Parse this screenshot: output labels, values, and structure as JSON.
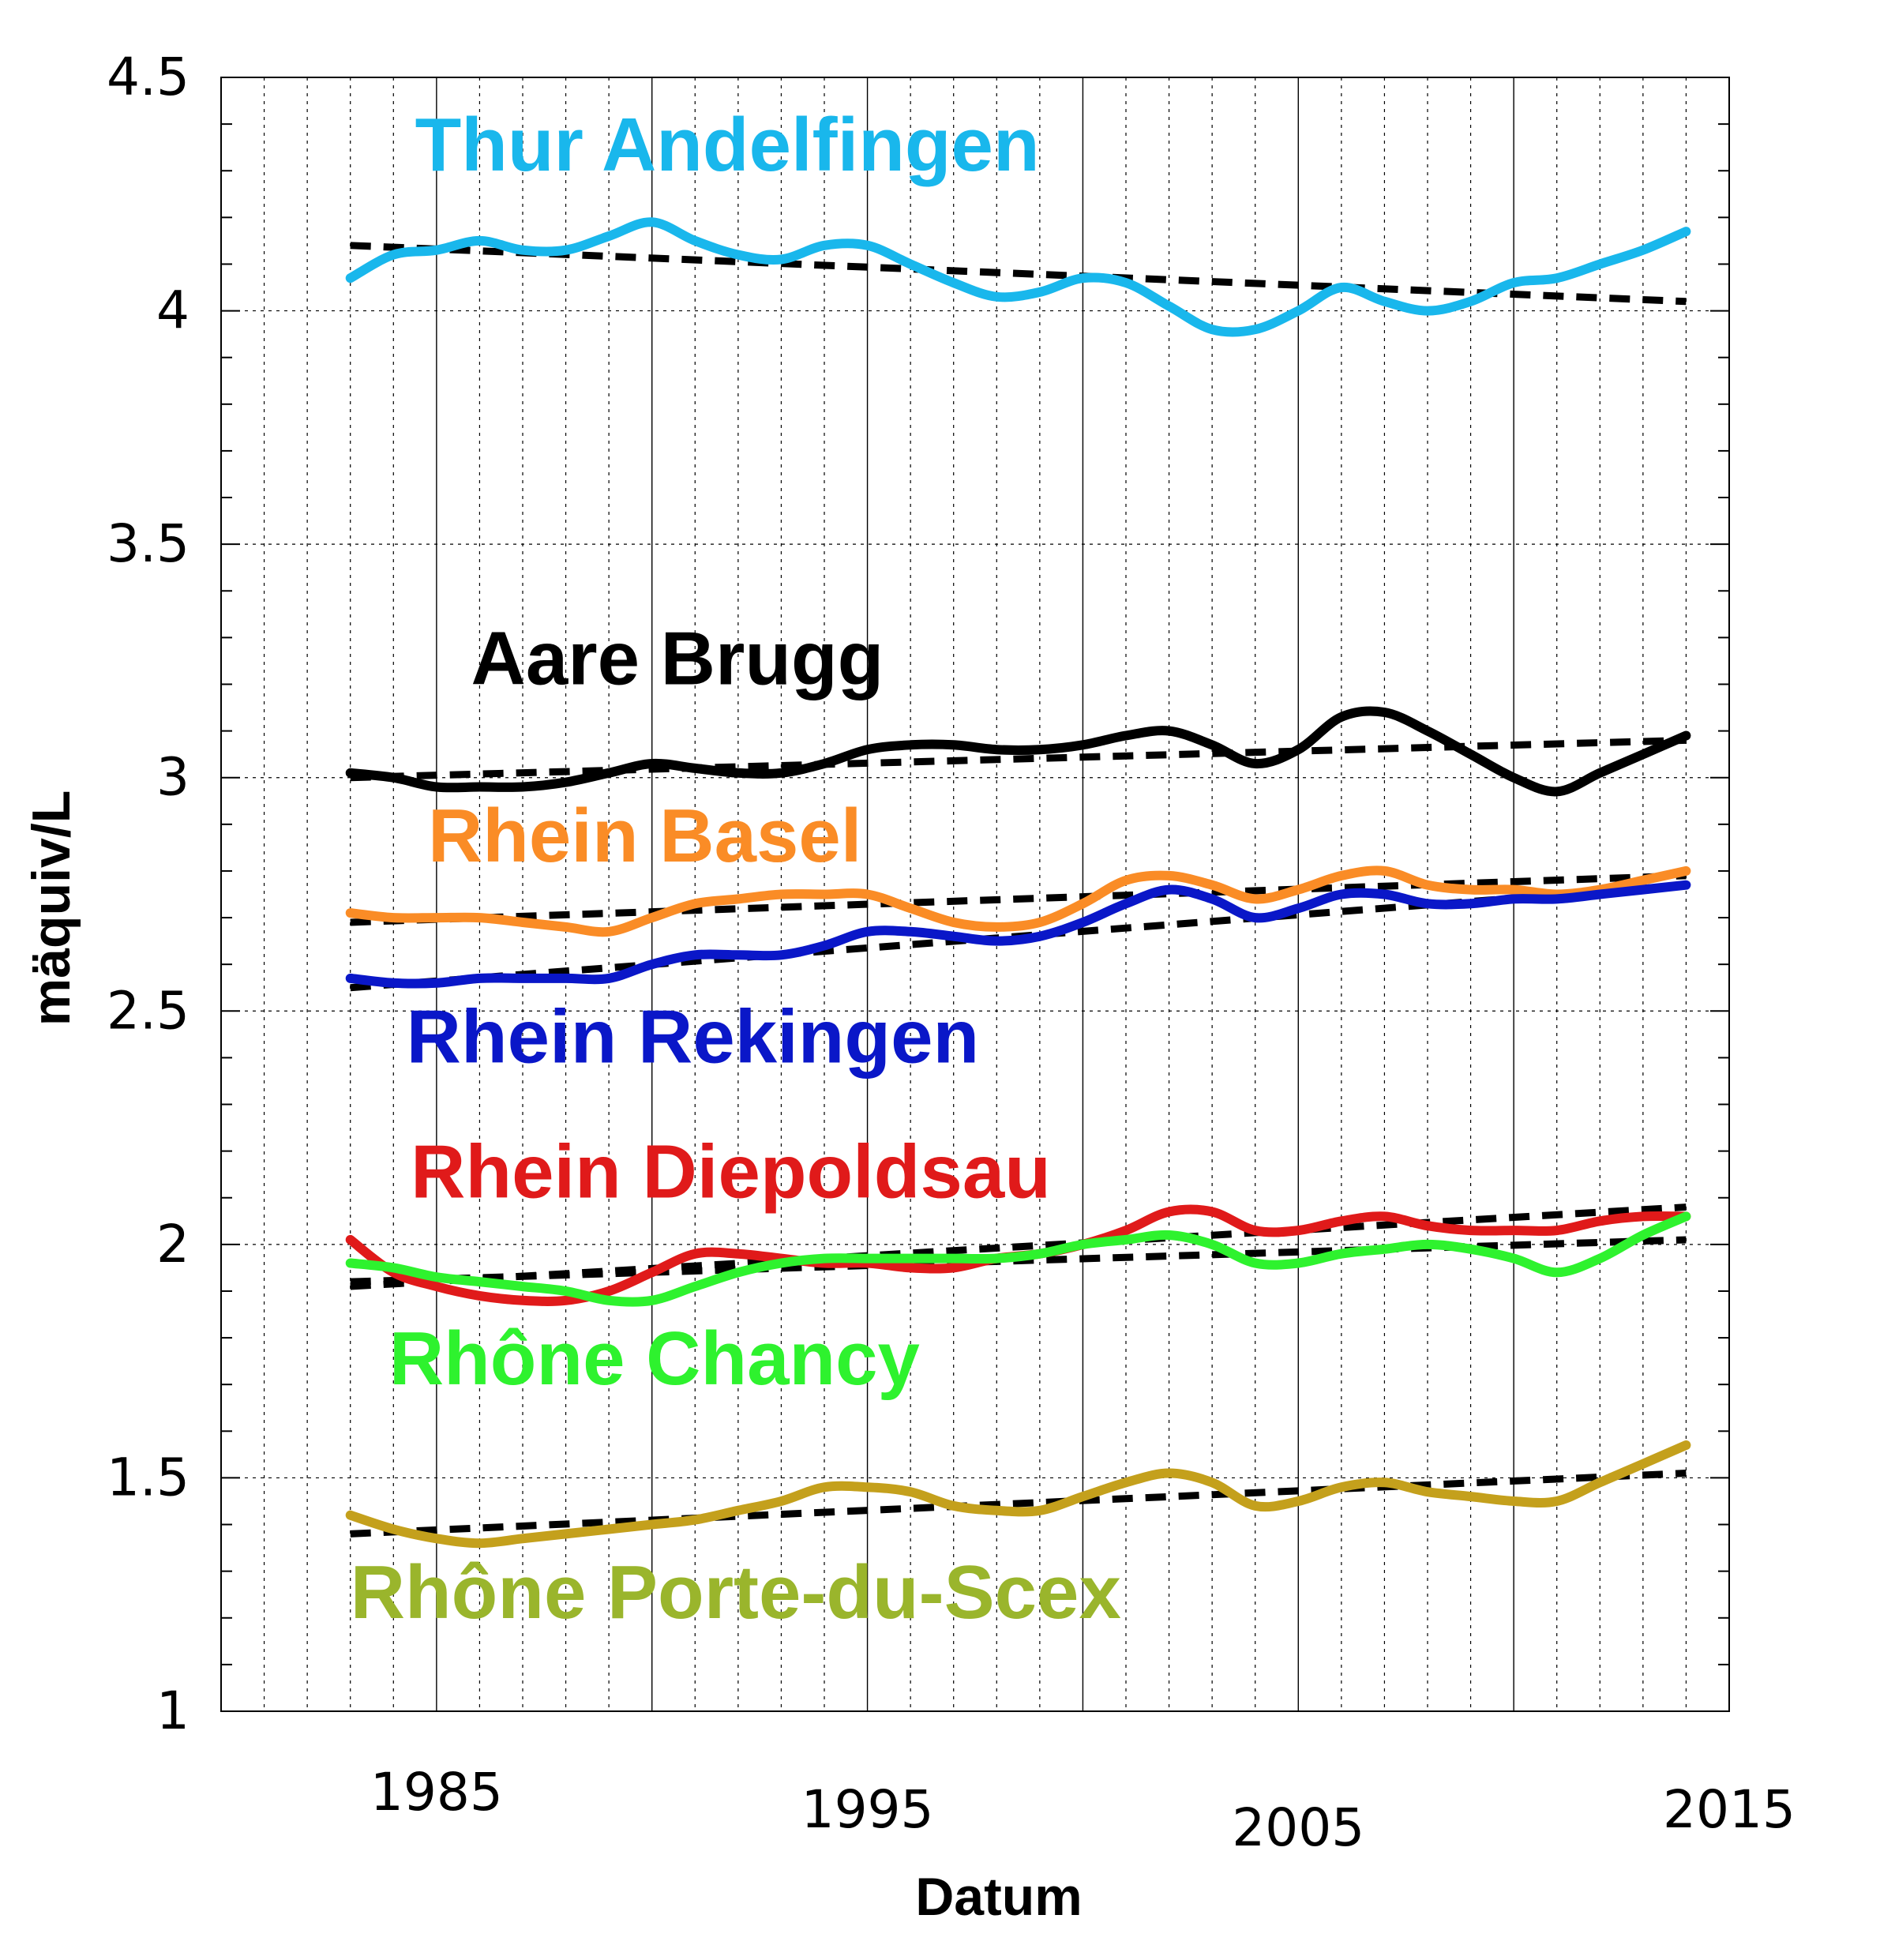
{
  "chart_data": {
    "type": "line",
    "xlabel": "Datum",
    "ylabel": "mäquiv/L",
    "xlim": [
      1980,
      2015
    ],
    "ylim": [
      1,
      4.5
    ],
    "x_ticks": [
      1985,
      1995,
      2005,
      2015
    ],
    "x_tick_labels": [
      "1985",
      "1995",
      "2005",
      "2015"
    ],
    "y_ticks": [
      1,
      1.5,
      2,
      2.5,
      3,
      3.5,
      4,
      4.5
    ],
    "y_tick_labels": [
      "1",
      "1.5",
      "2",
      "2.5",
      "3",
      "3.5",
      "4",
      "4.5"
    ],
    "grid": true,
    "legend": "inline labels",
    "series": [
      {
        "name": "Thur Andelfingen",
        "color": "#19B7EC",
        "x": [
          1983,
          1984,
          1985,
          1986,
          1987,
          1988,
          1989,
          1990,
          1991,
          1992,
          1993,
          1994,
          1995,
          1996,
          1997,
          1998,
          1999,
          2000,
          2001,
          2002,
          2003,
          2004,
          2005,
          2006,
          2007,
          2008,
          2009,
          2010,
          2011,
          2012,
          2013,
          2014
        ],
        "y": [
          4.07,
          4.12,
          4.13,
          4.15,
          4.13,
          4.13,
          4.16,
          4.19,
          4.15,
          4.12,
          4.11,
          4.14,
          4.14,
          4.1,
          4.06,
          4.03,
          4.04,
          4.07,
          4.06,
          4.01,
          3.96,
          3.96,
          4.0,
          4.05,
          4.02,
          4.0,
          4.02,
          4.06,
          4.07,
          4.1,
          4.13,
          4.17
        ],
        "trend": [
          [
            1983,
            4.14
          ],
          [
            2014,
            4.02
          ]
        ]
      },
      {
        "name": "Aare Brugg",
        "color": "#000000",
        "x": [
          1983,
          1984,
          1985,
          1986,
          1987,
          1988,
          1989,
          1990,
          1991,
          1992,
          1993,
          1994,
          1995,
          1996,
          1997,
          1998,
          1999,
          2000,
          2001,
          2002,
          2003,
          2004,
          2005,
          2006,
          2007,
          2008,
          2009,
          2010,
          2011,
          2012,
          2013,
          2014
        ],
        "y": [
          3.01,
          3.0,
          2.98,
          2.98,
          2.98,
          2.99,
          3.01,
          3.03,
          3.02,
          3.01,
          3.01,
          3.03,
          3.06,
          3.07,
          3.07,
          3.06,
          3.06,
          3.07,
          3.09,
          3.1,
          3.07,
          3.03,
          3.06,
          3.13,
          3.14,
          3.1,
          3.05,
          3.0,
          2.97,
          3.01,
          3.05,
          3.09
        ],
        "trend": [
          [
            1983,
            3.0
          ],
          [
            2014,
            3.08
          ]
        ]
      },
      {
        "name": "Rhein Basel",
        "color": "#FA8C26",
        "x": [
          1983,
          1984,
          1985,
          1986,
          1987,
          1988,
          1989,
          1990,
          1991,
          1992,
          1993,
          1994,
          1995,
          1996,
          1997,
          1998,
          1999,
          2000,
          2001,
          2002,
          2003,
          2004,
          2005,
          2006,
          2007,
          2008,
          2009,
          2010,
          2011,
          2012,
          2013,
          2014
        ],
        "y": [
          2.71,
          2.7,
          2.7,
          2.7,
          2.69,
          2.68,
          2.67,
          2.7,
          2.73,
          2.74,
          2.75,
          2.75,
          2.75,
          2.72,
          2.69,
          2.68,
          2.69,
          2.73,
          2.78,
          2.79,
          2.77,
          2.74,
          2.76,
          2.79,
          2.8,
          2.77,
          2.76,
          2.76,
          2.75,
          2.76,
          2.78,
          2.8
        ],
        "trend": [
          [
            1983,
            2.69
          ],
          [
            2014,
            2.79
          ]
        ]
      },
      {
        "name": "Rhein Rekingen",
        "color": "#0A17C8",
        "x": [
          1983,
          1984,
          1985,
          1986,
          1987,
          1988,
          1989,
          1990,
          1991,
          1992,
          1993,
          1994,
          1995,
          1996,
          1997,
          1998,
          1999,
          2000,
          2001,
          2002,
          2003,
          2004,
          2005,
          2006,
          2007,
          2008,
          2009,
          2010,
          2011,
          2012,
          2013,
          2014
        ],
        "y": [
          2.57,
          2.56,
          2.56,
          2.57,
          2.57,
          2.57,
          2.57,
          2.6,
          2.62,
          2.62,
          2.62,
          2.64,
          2.67,
          2.67,
          2.66,
          2.65,
          2.66,
          2.69,
          2.73,
          2.76,
          2.74,
          2.7,
          2.72,
          2.75,
          2.75,
          2.73,
          2.73,
          2.74,
          2.74,
          2.75,
          2.76,
          2.77
        ],
        "trend": [
          [
            1983,
            2.55
          ],
          [
            2014,
            2.77
          ]
        ]
      },
      {
        "name": "Rhein Diepoldsau",
        "color": "#E01A1A",
        "x": [
          1983,
          1984,
          1985,
          1986,
          1987,
          1988,
          1989,
          1990,
          1991,
          1992,
          1993,
          1994,
          1995,
          1996,
          1997,
          1998,
          1999,
          2000,
          2001,
          2002,
          2003,
          2004,
          2005,
          2006,
          2007,
          2008,
          2009,
          2010,
          2011,
          2012,
          2013,
          2014
        ],
        "y": [
          2.01,
          1.94,
          1.91,
          1.89,
          1.88,
          1.88,
          1.9,
          1.94,
          1.98,
          1.98,
          1.97,
          1.96,
          1.96,
          1.95,
          1.95,
          1.97,
          1.98,
          2.0,
          2.03,
          2.07,
          2.07,
          2.03,
          2.03,
          2.05,
          2.06,
          2.04,
          2.03,
          2.03,
          2.03,
          2.05,
          2.06,
          2.06
        ],
        "trend": [
          [
            1983,
            1.91
          ],
          [
            2014,
            2.08
          ]
        ]
      },
      {
        "name": "Rhône Chancy",
        "color": "#2EF22E",
        "x": [
          1983,
          1984,
          1985,
          1986,
          1987,
          1988,
          1989,
          1990,
          1991,
          1992,
          1993,
          1994,
          1995,
          1996,
          1997,
          1998,
          1999,
          2000,
          2001,
          2002,
          2003,
          2004,
          2005,
          2006,
          2007,
          2008,
          2009,
          2010,
          2011,
          2012,
          2013,
          2014
        ],
        "y": [
          1.96,
          1.95,
          1.93,
          1.92,
          1.91,
          1.9,
          1.88,
          1.88,
          1.91,
          1.94,
          1.96,
          1.97,
          1.97,
          1.97,
          1.97,
          1.97,
          1.98,
          2.0,
          2.01,
          2.02,
          2.0,
          1.96,
          1.96,
          1.98,
          1.99,
          2.0,
          1.99,
          1.97,
          1.94,
          1.97,
          2.02,
          2.06
        ],
        "trend": [
          [
            1983,
            1.92
          ],
          [
            2014,
            2.01
          ]
        ]
      },
      {
        "name": "Rhône Porte-du-Scex",
        "color": "#C4A01C",
        "label_color": "#9AB52C",
        "x": [
          1983,
          1984,
          1985,
          1986,
          1987,
          1988,
          1989,
          1990,
          1991,
          1992,
          1993,
          1994,
          1995,
          1996,
          1997,
          1998,
          1999,
          2000,
          2001,
          2002,
          2003,
          2004,
          2005,
          2006,
          2007,
          2008,
          2009,
          2010,
          2011,
          2012,
          2013,
          2014
        ],
        "y": [
          1.42,
          1.39,
          1.37,
          1.36,
          1.37,
          1.38,
          1.39,
          1.4,
          1.41,
          1.43,
          1.45,
          1.48,
          1.48,
          1.47,
          1.44,
          1.43,
          1.43,
          1.46,
          1.49,
          1.51,
          1.49,
          1.44,
          1.45,
          1.48,
          1.49,
          1.47,
          1.46,
          1.45,
          1.45,
          1.49,
          1.53,
          1.57
        ],
        "trend": [
          [
            1983,
            1.38
          ],
          [
            2014,
            1.51
          ]
        ]
      }
    ]
  }
}
